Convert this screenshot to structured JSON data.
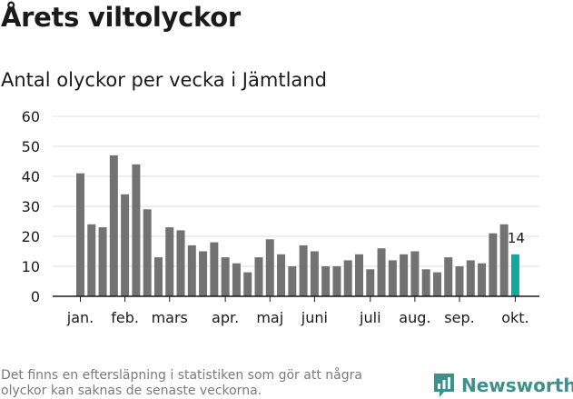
{
  "title": "Årets viltolyckor",
  "subtitle": "Antal olyckor per vecka i Jämtland",
  "footnote": "Det finns en eftersläpning i statistiken som gör att några olyckor kan saknas de senaste veckorna.",
  "logo": {
    "name": "Newsworthy",
    "icon": "newsworthy-logo-icon"
  },
  "colors": {
    "bar": "#727272",
    "highlight": "#13a89e",
    "grid": "#dddddd",
    "axis": "#1a1a1a",
    "brand": "#3f8f8a"
  },
  "chart_data": {
    "type": "bar",
    "title": "Antal olyckor per vecka i Jämtland",
    "xlabel": "",
    "ylabel": "",
    "ylim": [
      0,
      60
    ],
    "yticks": [
      0,
      10,
      20,
      30,
      40,
      50,
      60
    ],
    "grid": true,
    "weeks": [
      1,
      2,
      3,
      4,
      5,
      6,
      7,
      8,
      9,
      10,
      11,
      12,
      13,
      14,
      15,
      16,
      17,
      18,
      19,
      20,
      21,
      22,
      23,
      24,
      25,
      26,
      27,
      28,
      29,
      30,
      31,
      32,
      33,
      34,
      35,
      36,
      37,
      38,
      39,
      40
    ],
    "values": [
      41,
      24,
      23,
      47,
      34,
      44,
      29,
      13,
      23,
      22,
      17,
      15,
      18,
      13,
      11,
      8,
      13,
      19,
      14,
      10,
      17,
      15,
      10,
      10,
      12,
      14,
      9,
      16,
      12,
      14,
      15,
      9,
      8,
      13,
      10,
      12,
      11,
      21,
      24,
      14
    ],
    "highlight_last": true,
    "highlight_label": "14",
    "month_labels": [
      {
        "label": "jan.",
        "at_bar": 0
      },
      {
        "label": "feb.",
        "at_bar": 4
      },
      {
        "label": "mars",
        "at_bar": 8
      },
      {
        "label": "apr.",
        "at_bar": 13
      },
      {
        "label": "maj",
        "at_bar": 17
      },
      {
        "label": "juni",
        "at_bar": 21
      },
      {
        "label": "juli",
        "at_bar": 26
      },
      {
        "label": "aug.",
        "at_bar": 30
      },
      {
        "label": "sep.",
        "at_bar": 34
      },
      {
        "label": "okt.",
        "at_bar": 39
      }
    ]
  }
}
